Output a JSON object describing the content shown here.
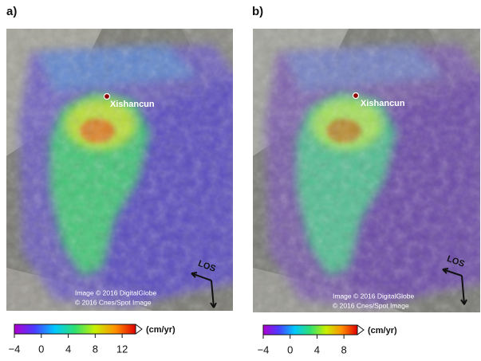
{
  "panels": [
    {
      "label": "a)",
      "place": "Xishancun",
      "credit_1": "Image © 2016 DigitalGlobe",
      "credit_2": "© 2016 Cnes/Spot Image",
      "arrow": "LOS",
      "colorbar": {
        "unit": "(cm/yr)",
        "lim": [
          -4,
          14
        ],
        "ticks": [
          {
            "value": -4,
            "label": "−4"
          },
          0,
          4,
          8,
          12
        ]
      }
    },
    {
      "label": "b)",
      "place": "Xishancun",
      "credit_1": "Image © 2016 DigitalGlobe",
      "credit_2": "© 2016 Cnes/Spot Image",
      "arrow": "LOS",
      "colorbar": {
        "unit": "(cm/yr)",
        "lim": [
          -4,
          10
        ],
        "ticks": [
          {
            "value": -4,
            "label": "−4"
          },
          0,
          4,
          8
        ]
      }
    }
  ],
  "colormap": [
    "#b000d0",
    "#4a3cff",
    "#00c8ff",
    "#30e070",
    "#c8f000",
    "#ff9000",
    "#e00000"
  ]
}
